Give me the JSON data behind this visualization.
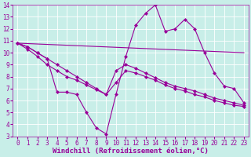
{
  "background_color": "#c8eee8",
  "line_color": "#990099",
  "grid_color": "#aadddd",
  "xlabel": "Windchill (Refroidissement éolien,°C)",
  "xlim": [
    -0.5,
    23.5
  ],
  "ylim": [
    3,
    14
  ],
  "yticks": [
    3,
    4,
    5,
    6,
    7,
    8,
    9,
    10,
    11,
    12,
    13,
    14
  ],
  "xticks": [
    0,
    1,
    2,
    3,
    4,
    5,
    6,
    7,
    8,
    9,
    10,
    11,
    12,
    13,
    14,
    15,
    16,
    17,
    18,
    19,
    20,
    21,
    22,
    23
  ],
  "series": [
    {
      "x": [
        0,
        23
      ],
      "y": [
        10.8,
        10.0
      ],
      "has_markers": false
    },
    {
      "x": [
        0,
        1,
        2,
        3,
        4,
        5,
        6,
        7,
        8,
        9,
        10,
        11,
        12,
        13,
        14,
        15,
        16,
        17,
        18,
        19,
        20,
        21,
        22,
        23
      ],
      "y": [
        10.8,
        10.5,
        10.0,
        9.5,
        6.7,
        6.7,
        6.5,
        5.0,
        3.7,
        3.2,
        6.5,
        9.7,
        12.3,
        13.3,
        14.0,
        11.8,
        12.0,
        12.8,
        12.0,
        10.0,
        8.3,
        7.2,
        7.0,
        5.8
      ],
      "has_markers": true
    },
    {
      "x": [
        0,
        1,
        2,
        3,
        4,
        5,
        6,
        7,
        8,
        9,
        10,
        11,
        12,
        13,
        14,
        15,
        16,
        17,
        18,
        19,
        20,
        21,
        22,
        23
      ],
      "y": [
        10.8,
        10.3,
        9.7,
        9.0,
        8.5,
        8.0,
        7.7,
        7.3,
        6.9,
        6.5,
        7.5,
        8.5,
        8.3,
        8.0,
        7.7,
        7.3,
        7.0,
        6.8,
        6.5,
        6.3,
        6.0,
        5.8,
        5.6,
        5.5
      ],
      "has_markers": true
    },
    {
      "x": [
        0,
        1,
        2,
        3,
        4,
        5,
        6,
        7,
        8,
        9,
        10,
        11,
        12,
        13,
        14,
        15,
        16,
        17,
        18,
        19,
        20,
        21,
        22,
        23
      ],
      "y": [
        10.8,
        10.5,
        10.0,
        9.5,
        9.0,
        8.5,
        8.0,
        7.5,
        7.0,
        6.5,
        8.5,
        9.0,
        8.7,
        8.3,
        7.9,
        7.5,
        7.2,
        7.0,
        6.8,
        6.5,
        6.2,
        6.0,
        5.8,
        5.6
      ],
      "has_markers": true
    }
  ],
  "marker": "D",
  "markersize": 2,
  "linewidth": 0.8,
  "tick_fontsize": 5.5,
  "xlabel_fontsize": 6.5,
  "label_color": "#990099",
  "spine_color": "#990099"
}
